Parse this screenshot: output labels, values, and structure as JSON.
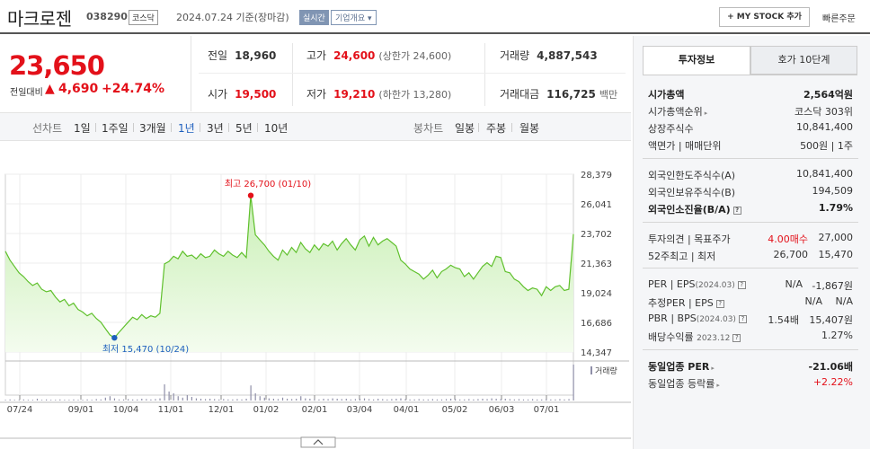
{
  "header": {
    "name": "마크로젠",
    "code": "038290",
    "market": "코스닥",
    "date": "2024.07.24 기준(장마감)",
    "live": "실시간",
    "info": "기업개요 ▾",
    "mystock": "+ MY STOCK 추가",
    "quick_order": "빠른주문"
  },
  "price": {
    "current": "23,650",
    "change_label": "전일대비",
    "change_value": "4,690",
    "change_pct": "+24.74%"
  },
  "quote": {
    "prev_label": "전일",
    "prev": "18,960",
    "high_label": "고가",
    "high": "24,600",
    "upper_limit": "(상한가 24,600)",
    "volume_label": "거래량",
    "volume": "4,887,543",
    "open_label": "시가",
    "open": "19,500",
    "low_label": "저가",
    "low": "19,210",
    "lower_limit": "(하한가 13,280)",
    "amount_label": "거래대금",
    "amount": "116,725",
    "amount_unit": "백만"
  },
  "tabs": {
    "line_label": "선차트",
    "line_items": [
      "1일",
      "1주일",
      "3개월",
      "1년",
      "3년",
      "5년",
      "10년"
    ],
    "candle_label": "봉차트",
    "candle_items": [
      "일봉",
      "주봉",
      "월봉"
    ],
    "selected": "1년"
  },
  "chart_data": {
    "type": "area",
    "y_ticks": [
      "28,379",
      "26,041",
      "23,702",
      "21,363",
      "19,024",
      "16,686",
      "14,347"
    ],
    "ylim": [
      14347,
      28379
    ],
    "x_ticks": [
      "07/24",
      "09/01",
      "10/04",
      "11/01",
      "12/01",
      "01/02",
      "02/01",
      "03/04",
      "04/01",
      "05/02",
      "06/03",
      "07/01"
    ],
    "max_label": "최고 26,700 (01/10)",
    "min_label": "최저 15,470 (10/24)",
    "volume_legend": "거래량",
    "line_color": "#5fc02c",
    "fill_color": "#c9efb5",
    "values": [
      22300,
      21600,
      21100,
      20600,
      20300,
      19900,
      19600,
      19800,
      19300,
      19100,
      19200,
      18700,
      18300,
      18500,
      18000,
      18200,
      17700,
      17500,
      17200,
      17400,
      17000,
      16700,
      16200,
      15700,
      15470,
      15900,
      16300,
      16700,
      17100,
      16900,
      17300,
      17000,
      17200,
      17100,
      17400,
      21300,
      21500,
      21900,
      21700,
      22300,
      21900,
      22000,
      21700,
      22100,
      21800,
      21900,
      22400,
      22100,
      21900,
      22300,
      22000,
      21800,
      22200,
      21800,
      26700,
      23600,
      23200,
      22800,
      22300,
      21900,
      21600,
      22400,
      22000,
      22600,
      22200,
      23000,
      22500,
      22200,
      22800,
      22400,
      22900,
      22700,
      23100,
      22400,
      22900,
      23300,
      22800,
      22400,
      23200,
      23500,
      22700,
      23400,
      22800,
      23100,
      23300,
      23000,
      22700,
      21600,
      21300,
      20900,
      20700,
      20500,
      20100,
      20400,
      20800,
      20200,
      20700,
      20900,
      21200,
      21000,
      20900,
      20300,
      20600,
      20100,
      20600,
      21100,
      21400,
      21100,
      21900,
      21800,
      20700,
      20600,
      20100,
      19900,
      19500,
      19200,
      19400,
      19300,
      18800,
      19500,
      19200,
      19500,
      19600,
      19200,
      19300,
      23650
    ],
    "volumes": [
      0.02,
      0.03,
      0.02,
      0.02,
      0.03,
      0.02,
      0.02,
      0.05,
      0.02,
      0.03,
      0.02,
      0.02,
      0.03,
      0.02,
      0.02,
      0.03,
      0.02,
      0.02,
      0.03,
      0.02,
      0.04,
      0.03,
      0.08,
      0.12,
      0.06,
      0.03,
      0.03,
      0.04,
      0.03,
      0.03,
      0.05,
      0.04,
      0.03,
      0.04,
      0.06,
      0.45,
      0.25,
      0.2,
      0.12,
      0.08,
      0.15,
      0.1,
      0.06,
      0.05,
      0.04,
      0.05,
      0.04,
      0.03,
      0.04,
      0.03,
      0.03,
      0.04,
      0.03,
      0.05,
      0.42,
      0.2,
      0.12,
      0.08,
      0.06,
      0.05,
      0.04,
      0.08,
      0.05,
      0.04,
      0.05,
      0.12,
      0.06,
      0.05,
      0.04,
      0.03,
      0.05,
      0.04,
      0.06,
      0.05,
      0.04,
      0.05,
      0.03,
      0.04,
      0.05,
      0.06,
      0.04,
      0.03,
      0.05,
      0.04,
      0.03,
      0.04,
      0.05,
      0.06,
      0.04,
      0.03,
      0.03,
      0.04,
      0.03,
      0.03,
      0.04,
      0.03,
      0.03,
      0.04,
      0.05,
      0.04,
      0.03,
      0.03,
      0.04,
      0.03,
      0.04,
      0.05,
      0.04,
      0.06,
      0.05,
      0.04,
      0.05,
      0.04,
      0.03,
      0.04,
      0.03,
      0.03,
      0.04,
      0.03,
      0.03,
      0.04,
      0.03,
      0.03,
      0.04,
      0.03,
      0.04,
      1.0
    ]
  },
  "invest": {
    "tab_info": "투자정보",
    "tab_order": "호가 10단계",
    "rows1": [
      {
        "k": "시가총액",
        "v": "2,564억원"
      },
      {
        "k": "시가총액순위",
        "v": "코스닥 303위"
      },
      {
        "k": "상장주식수",
        "v": "10,841,400"
      },
      {
        "k": "액면가 | 매매단위",
        "v": "500원 | 1주"
      }
    ],
    "rows2": [
      {
        "k": "외국인한도주식수(A)",
        "v": "10,841,400"
      },
      {
        "k": "외국인보유주식수(B)",
        "v": "194,509"
      },
      {
        "k": "외국인소진율(B/A)",
        "v": "1.79%"
      }
    ],
    "opinion_label": "투자의견 | 목표주가",
    "opinion": "4.00매수",
    "target": "27,000",
    "wk52_label": "52주최고 | 최저",
    "wk52_high": "26,700",
    "wk52_low": "15,470",
    "per_label": "PER | EPS",
    "per_period": "(2024.03)",
    "per": "N/A",
    "eps": "-1,867원",
    "est_label": "추정PER | EPS",
    "est_per": "N/A",
    "est_eps": "N/A",
    "pbr_label": "PBR | BPS",
    "pbr_period": "(2024.03)",
    "pbr": "1.54배",
    "bps": "15,407원",
    "div_label": "배당수익률",
    "div_period": "2023.12",
    "div": "1.27%",
    "sector_per_label": "동일업종 PER",
    "sector_per": "-21.06배",
    "sector_change_label": "동일업종 등락률",
    "sector_change": "+2.22%"
  }
}
